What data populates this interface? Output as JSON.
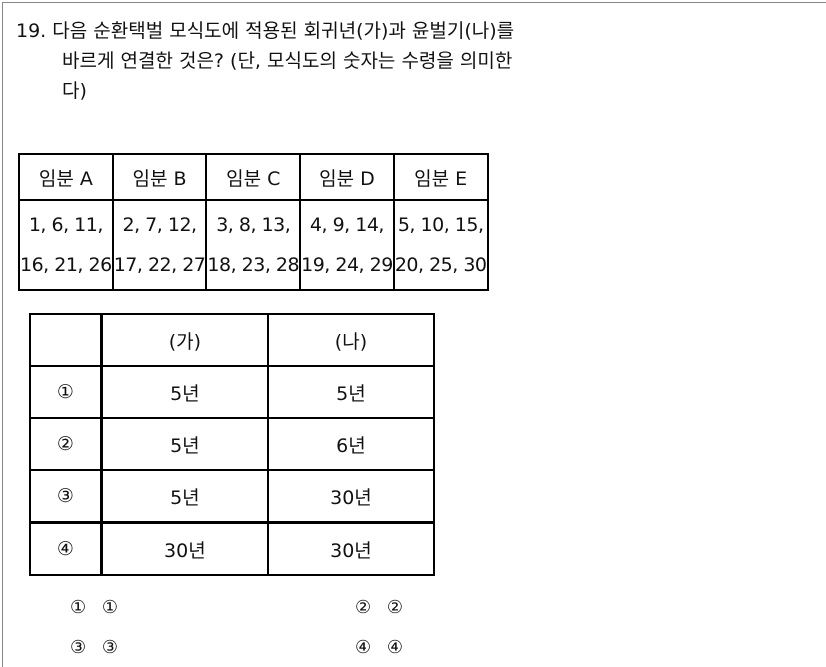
{
  "question": {
    "number": "19.",
    "lines": [
      "다음 순환택벌 모식도에 적용된 회귀년(가)과 윤벌기(나)를",
      "바르게 연결한 것은? (단, 모식도의 숫자는 수령을 의미한",
      "다)"
    ]
  },
  "compartment_table": {
    "headers": [
      "임분 A",
      "임분 B",
      "임분 C",
      "임분 D",
      "임분 E"
    ],
    "rows": [
      [
        "1, 6, 11,",
        "2, 7, 12,",
        "3, 8, 13,",
        "4, 9, 14,",
        "5, 10, 15,"
      ],
      [
        "16, 21, 26",
        "17, 22, 27",
        "18, 23, 28",
        "19, 24, 29",
        "20, 25, 30"
      ]
    ]
  },
  "answer_table": {
    "headers": [
      "",
      "(가)",
      "(나)"
    ],
    "rows": [
      [
        "①",
        "5년",
        "5년"
      ],
      [
        "②",
        "5년",
        "6년"
      ],
      [
        "③",
        "5년",
        "30년"
      ],
      [
        "④",
        "30년",
        "30년"
      ]
    ]
  },
  "choices": [
    "① ①",
    "② ②",
    "③ ③",
    "④ ④"
  ]
}
